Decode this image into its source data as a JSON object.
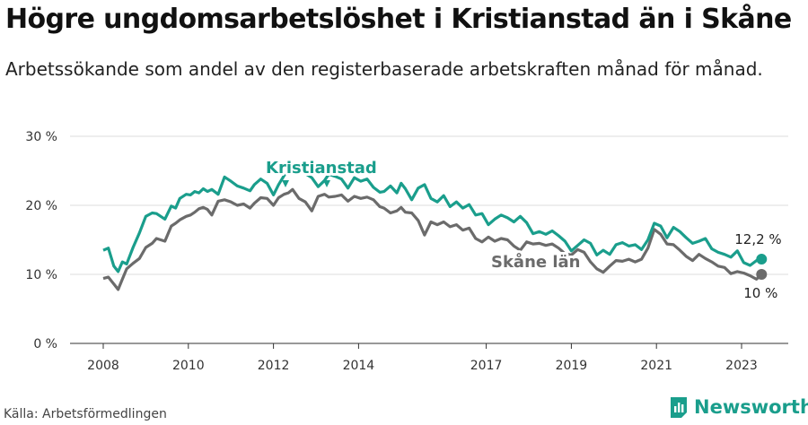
{
  "title": "Högre ungdomsarbetslöshet i Kristianstad än i Skåne",
  "subtitle": "Arbetssökande som andel av den registerbaserade arbetskraften månad för månad.",
  "source": "Källa: Arbetsförmedlingen",
  "brand": "Newsworthy",
  "colors": {
    "kristianstad": "#1a9e8c",
    "skane": "#6b6b6b",
    "grid": "#dddddd",
    "axis": "#333333"
  },
  "chart_data": {
    "type": "line",
    "title": "Högre ungdomsarbetslöshet i Kristianstad än i Skåne",
    "xlabel": "",
    "ylabel": "",
    "xlim": [
      2008,
      2023.7
    ],
    "ylim": [
      0,
      30
    ],
    "y_ticks": [
      0,
      10,
      20,
      30
    ],
    "y_tick_labels": [
      "0 %",
      "10 %",
      "20 %",
      "30 %"
    ],
    "x_ticks": [
      2008,
      2010,
      2012,
      2014,
      2017,
      2019,
      2021,
      2023
    ],
    "x_tick_labels": [
      "2008",
      "2010",
      "2012",
      "2014",
      "2017",
      "2019",
      "2021",
      "2023"
    ],
    "grid": true,
    "series": [
      {
        "name": "Kristianstad",
        "label": "Kristianstad",
        "end_label": "12,2 %",
        "x": [
          2008.0,
          2008.12,
          2008.25,
          2008.35,
          2008.45,
          2008.55,
          2008.7,
          2008.85,
          2009.0,
          2009.15,
          2009.25,
          2009.45,
          2009.6,
          2009.7,
          2009.8,
          2009.95,
          2010.05,
          2010.15,
          2010.25,
          2010.35,
          2010.45,
          2010.55,
          2010.7,
          2010.85,
          2011.0,
          2011.15,
          2011.3,
          2011.45,
          2011.55,
          2011.7,
          2011.85,
          2012.0,
          2012.12,
          2012.25,
          2012.35,
          2012.45,
          2012.6,
          2012.75,
          2012.9,
          2013.05,
          2013.2,
          2013.3,
          2013.45,
          2013.6,
          2013.75,
          2013.9,
          2014.05,
          2014.2,
          2014.35,
          2014.5,
          2014.6,
          2014.75,
          2014.9,
          2015.0,
          2015.1,
          2015.25,
          2015.4,
          2015.55,
          2015.7,
          2015.85,
          2016.0,
          2016.15,
          2016.3,
          2016.45,
          2016.6,
          2016.75,
          2016.9,
          2017.05,
          2017.2,
          2017.35,
          2017.5,
          2017.65,
          2017.8,
          2017.95,
          2018.1,
          2018.25,
          2018.4,
          2018.55,
          2018.7,
          2018.85,
          2019.0,
          2019.15,
          2019.3,
          2019.45,
          2019.6,
          2019.75,
          2019.9,
          2020.05,
          2020.2,
          2020.35,
          2020.5,
          2020.65,
          2020.8,
          2020.95,
          2021.1,
          2021.25,
          2021.4,
          2021.55,
          2021.7,
          2021.85,
          2022.0,
          2022.15,
          2022.3,
          2022.45,
          2022.6,
          2022.75,
          2022.9,
          2023.05,
          2023.2,
          2023.35,
          2023.47
        ],
        "y": [
          13.5,
          13.8,
          11.2,
          10.4,
          11.8,
          11.5,
          13.9,
          16.0,
          18.4,
          18.9,
          18.8,
          18.0,
          19.9,
          19.6,
          21.0,
          21.6,
          21.5,
          22.0,
          21.8,
          22.4,
          22.0,
          22.3,
          21.6,
          24.1,
          23.5,
          22.8,
          22.5,
          22.1,
          23.0,
          23.8,
          23.2,
          21.5,
          23.0,
          24.3,
          25.2,
          25.8,
          25.0,
          24.6,
          24.0,
          22.7,
          23.6,
          24.5,
          24.2,
          23.8,
          22.5,
          24.0,
          23.5,
          23.8,
          22.6,
          21.9,
          22.0,
          22.8,
          21.8,
          23.2,
          22.4,
          20.8,
          22.5,
          23.0,
          21.0,
          20.5,
          21.4,
          19.8,
          20.5,
          19.6,
          20.1,
          18.6,
          18.8,
          17.2,
          18.0,
          18.6,
          18.2,
          17.6,
          18.4,
          17.5,
          15.9,
          16.2,
          15.8,
          16.3,
          15.6,
          14.8,
          13.4,
          14.2,
          15.0,
          14.5,
          12.8,
          13.5,
          12.9,
          14.3,
          14.6,
          14.1,
          14.3,
          13.6,
          15.0,
          17.4,
          17.0,
          15.3,
          16.8,
          16.2,
          15.3,
          14.5,
          14.8,
          15.2,
          13.7,
          13.2,
          12.9,
          12.5,
          13.4,
          11.7,
          11.3,
          12.0,
          12.2
        ]
      },
      {
        "name": "Skåne län",
        "label": "Skåne län",
        "end_label": "10 %",
        "x": [
          2008.0,
          2008.12,
          2008.25,
          2008.35,
          2008.45,
          2008.55,
          2008.7,
          2008.85,
          2009.0,
          2009.15,
          2009.25,
          2009.45,
          2009.6,
          2009.7,
          2009.8,
          2009.95,
          2010.05,
          2010.15,
          2010.25,
          2010.35,
          2010.45,
          2010.55,
          2010.7,
          2010.85,
          2011.0,
          2011.15,
          2011.3,
          2011.45,
          2011.55,
          2011.7,
          2011.85,
          2012.0,
          2012.12,
          2012.25,
          2012.35,
          2012.45,
          2012.6,
          2012.75,
          2012.9,
          2013.05,
          2013.2,
          2013.3,
          2013.45,
          2013.6,
          2013.75,
          2013.9,
          2014.05,
          2014.2,
          2014.35,
          2014.5,
          2014.6,
          2014.75,
          2014.9,
          2015.0,
          2015.1,
          2015.25,
          2015.4,
          2015.55,
          2015.7,
          2015.85,
          2016.0,
          2016.15,
          2016.3,
          2016.45,
          2016.6,
          2016.75,
          2016.9,
          2017.05,
          2017.2,
          2017.35,
          2017.5,
          2017.65,
          2017.8,
          2017.95,
          2018.1,
          2018.25,
          2018.4,
          2018.55,
          2018.7,
          2018.85,
          2019.0,
          2019.15,
          2019.3,
          2019.45,
          2019.6,
          2019.75,
          2019.9,
          2020.05,
          2020.2,
          2020.35,
          2020.5,
          2020.65,
          2020.8,
          2020.95,
          2021.1,
          2021.25,
          2021.4,
          2021.55,
          2021.7,
          2021.85,
          2022.0,
          2022.15,
          2022.3,
          2022.45,
          2022.6,
          2022.75,
          2022.9,
          2023.05,
          2023.2,
          2023.35,
          2023.47
        ],
        "y": [
          9.4,
          9.6,
          8.6,
          7.8,
          9.3,
          10.8,
          11.6,
          12.3,
          13.9,
          14.5,
          15.2,
          14.8,
          17.0,
          17.4,
          17.9,
          18.4,
          18.6,
          19.0,
          19.5,
          19.7,
          19.4,
          18.6,
          20.6,
          20.8,
          20.5,
          20.0,
          20.2,
          19.6,
          20.3,
          21.1,
          21.0,
          20.0,
          21.1,
          21.6,
          21.8,
          22.3,
          21.0,
          20.5,
          19.2,
          21.3,
          21.6,
          21.2,
          21.3,
          21.5,
          20.6,
          21.3,
          21.0,
          21.2,
          20.8,
          19.8,
          19.6,
          18.9,
          19.2,
          19.7,
          19.0,
          18.9,
          17.8,
          15.7,
          17.6,
          17.2,
          17.6,
          16.9,
          17.2,
          16.4,
          16.7,
          15.2,
          14.7,
          15.4,
          14.8,
          15.2,
          15.0,
          14.1,
          13.5,
          14.7,
          14.4,
          14.5,
          14.2,
          14.4,
          13.8,
          13.0,
          12.8,
          13.6,
          13.2,
          11.8,
          10.8,
          10.3,
          11.2,
          12.0,
          11.9,
          12.2,
          11.8,
          12.2,
          13.8,
          16.5,
          15.8,
          14.4,
          14.3,
          13.5,
          12.6,
          12.0,
          12.9,
          12.3,
          11.8,
          11.2,
          11.0,
          10.1,
          10.4,
          10.2,
          9.8,
          9.3,
          10.0
        ]
      }
    ]
  }
}
